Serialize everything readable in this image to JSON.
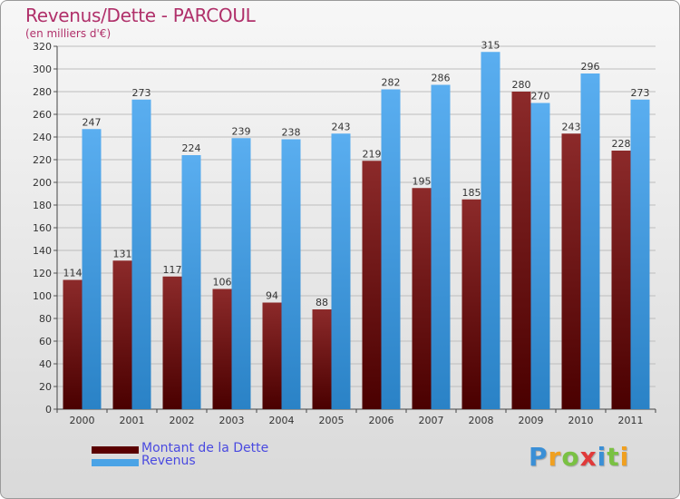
{
  "chart_data": {
    "type": "bar",
    "title": "Revenus/Dette - PARCOUL",
    "subtitle": "(en milliers d'€)",
    "categories": [
      "2000",
      "2001",
      "2002",
      "2003",
      "2004",
      "2005",
      "2006",
      "2007",
      "2008",
      "2009",
      "2010",
      "2011"
    ],
    "series": [
      {
        "name": "Montant de la Dette",
        "color": "#7a1a1a",
        "values": [
          114,
          131,
          117,
          106,
          94,
          88,
          219,
          195,
          185,
          280,
          243,
          228
        ]
      },
      {
        "name": "Revenus",
        "color": "#4aa3e6",
        "values": [
          247,
          273,
          224,
          239,
          238,
          243,
          282,
          286,
          315,
          270,
          296,
          273
        ]
      }
    ],
    "ylim": [
      0,
      320
    ],
    "yticks": [
      0,
      20,
      40,
      60,
      80,
      100,
      120,
      140,
      160,
      180,
      200,
      220,
      240,
      260,
      280,
      300,
      320
    ],
    "grid": true,
    "legend_position": "bottom-left"
  },
  "logo": {
    "letters": [
      {
        "ch": "P",
        "color": "#3a8fd6"
      },
      {
        "ch": "r",
        "color": "#f0a020"
      },
      {
        "ch": "o",
        "color": "#7ac143"
      },
      {
        "ch": "x",
        "color": "#e03a3a"
      },
      {
        "ch": "i",
        "color": "#3a8fd6"
      },
      {
        "ch": "t",
        "color": "#7ac143"
      },
      {
        "ch": "i",
        "color": "#f0a020"
      }
    ]
  }
}
